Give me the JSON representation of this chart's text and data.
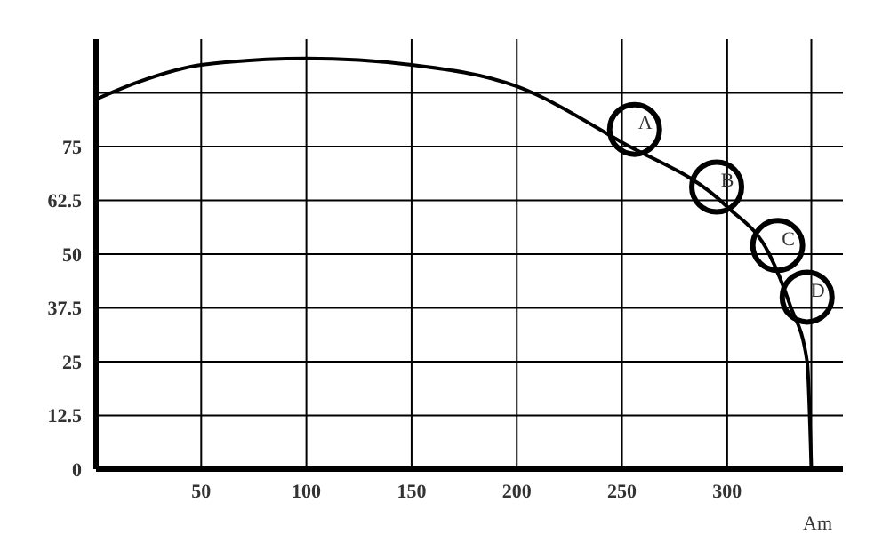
{
  "chart_data": {
    "type": "line",
    "xlabel": "Am",
    "series": [
      {
        "color": "#000000",
        "x": [
          0,
          20,
          50,
          100,
          150,
          200,
          250,
          300,
          320,
          330,
          338,
          340
        ],
        "values": [
          86,
          90,
          94,
          95.5,
          94,
          89,
          76,
          61,
          50,
          38,
          25,
          0
        ]
      }
    ],
    "xlim": [
      0,
      355
    ],
    "xticks": [
      50,
      100,
      150,
      200,
      250,
      300,
      {
        "value": 340,
        "label": null
      }
    ],
    "ylim": [
      0,
      100
    ],
    "yticks": [
      0,
      12.5,
      25,
      37.5,
      50,
      62.5,
      75,
      {
        "value": 87.5,
        "label": null
      }
    ],
    "grid": true,
    "marker": "none",
    "line_style": "solid",
    "annotations": [
      {
        "text": "A",
        "x": 256,
        "y": 79
      },
      {
        "text": "B",
        "x": 295,
        "y": 65.6
      },
      {
        "text": "C",
        "x": 324,
        "y": 52
      },
      {
        "text": "D",
        "x": 338,
        "y": 40
      }
    ]
  }
}
